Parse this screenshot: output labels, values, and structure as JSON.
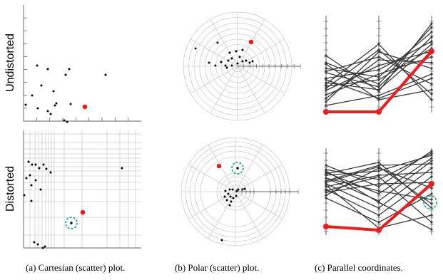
{
  "rows": [
    {
      "id": "undistorted",
      "label": "Undistorted"
    },
    {
      "id": "distorted",
      "label": "Distorted"
    }
  ],
  "captions": {
    "cartesian": "(a) Cartesian (scatter) plot.",
    "polar": "(b) Polar (scatter) plot.",
    "parallel": "(c) Parallel coordinates."
  },
  "colors": {
    "point": "#000000",
    "highlight": "#ee1c1c",
    "focus_ring": "#1aa58a",
    "grid": "#cfcfcf",
    "axis": "#666666",
    "line": "#3a3a3a"
  }
}
